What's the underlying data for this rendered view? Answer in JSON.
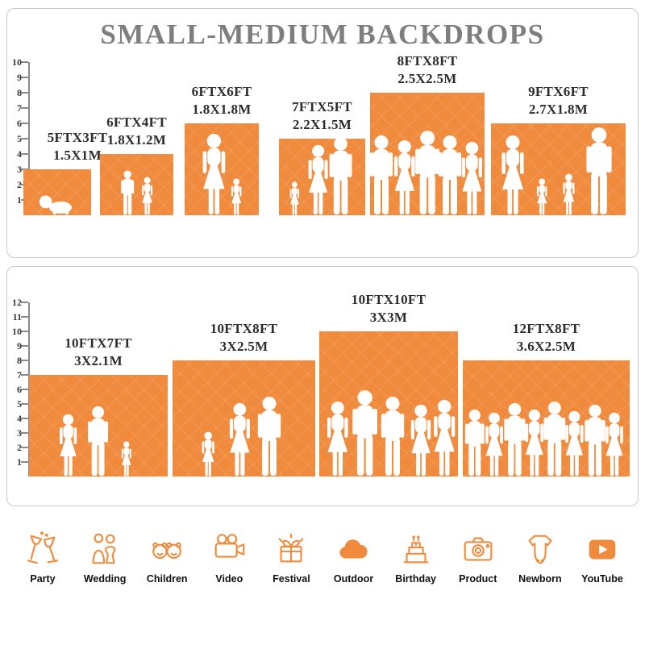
{
  "accent_color": "#F08A3C",
  "title_color": "#7E7E7E",
  "chart_data": [
    {
      "type": "bar",
      "title": "SMALL-MEDIUM BACKDROPS",
      "unit": "FT",
      "ylim": [
        0,
        10
      ],
      "yticks": [
        1,
        2,
        3,
        4,
        5,
        6,
        7,
        8,
        9,
        10
      ],
      "bar_color": "#F08A3C",
      "bars": [
        {
          "size_ft": "5FTX3FT",
          "size_m": "1.5X1M",
          "width_ft": 5,
          "height_ft": 3
        },
        {
          "size_ft": "6FTX4FT",
          "size_m": "1.8X1.2M",
          "width_ft": 6,
          "height_ft": 4
        },
        {
          "size_ft": "6FTX6FT",
          "size_m": "1.8X1.8M",
          "width_ft": 6,
          "height_ft": 6
        },
        {
          "size_ft": "7FTX5FT",
          "size_m": "2.2X1.5M",
          "width_ft": 7,
          "height_ft": 5
        },
        {
          "size_ft": "8FTX8FT",
          "size_m": "2.5X2.5M",
          "width_ft": 8,
          "height_ft": 8
        },
        {
          "size_ft": "9FTX6FT",
          "size_m": "2.7X1.8M",
          "width_ft": 9,
          "height_ft": 6
        }
      ]
    },
    {
      "type": "bar",
      "title": "",
      "unit": "FT",
      "ylim": [
        0,
        12
      ],
      "yticks": [
        1,
        2,
        3,
        4,
        5,
        6,
        7,
        8,
        9,
        10,
        11,
        12
      ],
      "bar_color": "#F08A3C",
      "bars": [
        {
          "size_ft": "10FTX7FT",
          "size_m": "3X2.1M",
          "width_ft": 10,
          "height_ft": 7
        },
        {
          "size_ft": "10FTX8FT",
          "size_m": "3X2.5M",
          "width_ft": 10,
          "height_ft": 8
        },
        {
          "size_ft": "10FTX10FT",
          "size_m": "3X3M",
          "width_ft": 10,
          "height_ft": 10
        },
        {
          "size_ft": "12FTX8FT",
          "size_m": "3.6X2.5M",
          "width_ft": 12,
          "height_ft": 8
        }
      ]
    }
  ],
  "footer": {
    "categories": [
      {
        "label": "Party",
        "icon": "party-drinks-icon"
      },
      {
        "label": "Wedding",
        "icon": "wedding-couple-icon"
      },
      {
        "label": "Children",
        "icon": "children-faces-icon"
      },
      {
        "label": "Video",
        "icon": "video-camera-icon"
      },
      {
        "label": "Festival",
        "icon": "gift-box-icon"
      },
      {
        "label": "Outdoor",
        "icon": "cloud-icon"
      },
      {
        "label": "Birthday",
        "icon": "birthday-cake-icon"
      },
      {
        "label": "Product",
        "icon": "photo-camera-icon"
      },
      {
        "label": "Newborn",
        "icon": "baby-onesie-icon"
      },
      {
        "label": "YouTube",
        "icon": "play-button-icon"
      }
    ]
  }
}
